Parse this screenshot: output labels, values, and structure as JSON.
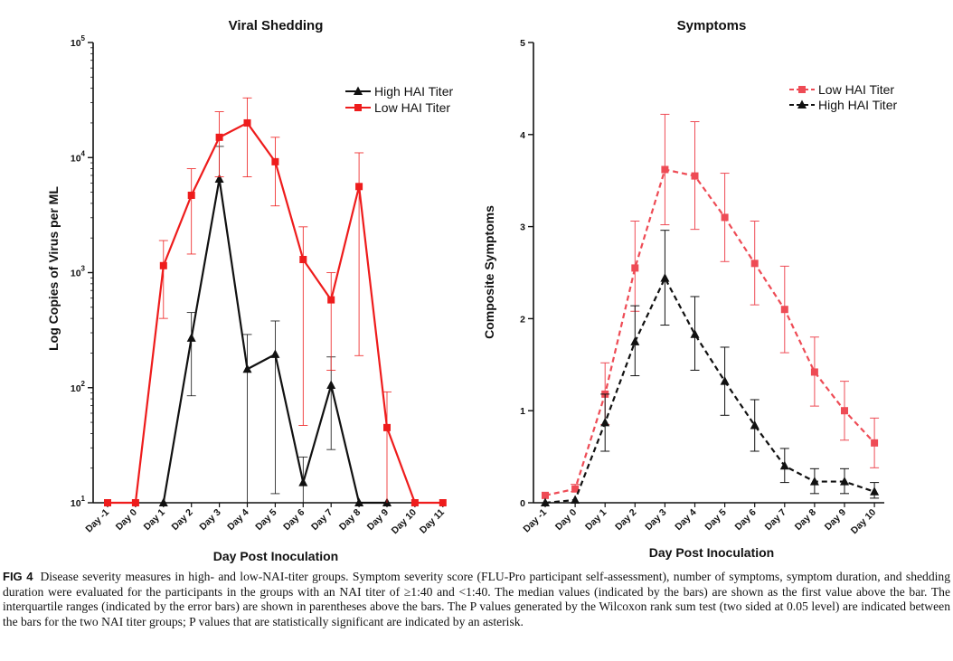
{
  "caption": {
    "label": "FIG 4",
    "text": "Disease severity measures in high- and low-NAI-titer groups. Symptom severity score (FLU-Pro participant self-assessment), number of symptoms, symptom duration, and shedding duration were evaluated for the participants in the groups with an NAI titer of ≥1:40 and <1:40. The median values (indicated by the bars) are shown as the first value above the bar. The interquartile ranges (indicated by the error bars) are shown in parentheses above the bars. The P values generated by the Wilcoxon rank sum test (two sided at 0.05 level) are indicated between the bars for the two NAI titer groups; P values that are statistically significant are indicated by an asterisk."
  },
  "chart_data": [
    {
      "type": "line",
      "title": "Viral Shedding",
      "xlabel": "Day Post Inoculation",
      "ylabel": "Log Copies of Virus per ML",
      "yscale": "log",
      "ylim": [
        10,
        100000
      ],
      "yticks": [
        {
          "value": 10,
          "base": "10",
          "exp": "1"
        },
        {
          "value": 100,
          "base": "10",
          "exp": "2"
        },
        {
          "value": 1000,
          "base": "10",
          "exp": "3"
        },
        {
          "value": 10000,
          "base": "10",
          "exp": "4"
        },
        {
          "value": 100000,
          "base": "10",
          "exp": "5"
        }
      ],
      "categories": [
        "Day -1",
        "Day 0",
        "Day 1",
        "Day 2",
        "Day 3",
        "Day 4",
        "Day 5",
        "Day 6",
        "Day 7",
        "Day 8",
        "Day 9",
        "Day 10",
        "Day 11"
      ],
      "legend_position": "top-right",
      "series": [
        {
          "name": "High HAI Titer",
          "color": "#111111",
          "marker": "triangle",
          "dash": false,
          "values": [
            null,
            null,
            10,
            270,
            6500,
            145,
            195,
            15,
            105,
            10,
            10,
            null,
            null
          ],
          "err_low": [
            null,
            null,
            null,
            85,
            null,
            10,
            12,
            10,
            29,
            null,
            null,
            null,
            null
          ],
          "err_high": [
            null,
            null,
            null,
            450,
            12500,
            290,
            380,
            25,
            185,
            null,
            null,
            null,
            null
          ]
        },
        {
          "name": "Low HAI Titer",
          "color": "#ee1c1c",
          "marker": "square",
          "dash": false,
          "values": [
            10,
            10,
            1150,
            4700,
            15000,
            20000,
            9200,
            1300,
            580,
            5600,
            45,
            10,
            10
          ],
          "err_low": [
            null,
            null,
            400,
            1450,
            6800,
            6800,
            3800,
            47,
            142,
            190,
            10,
            null,
            null
          ],
          "err_high": [
            null,
            null,
            1900,
            8000,
            25000,
            33000,
            15000,
            2500,
            1000,
            11000,
            92,
            null,
            null
          ]
        }
      ]
    },
    {
      "type": "line",
      "title": "Symptoms",
      "xlabel": "Day Post Inoculation",
      "ylabel": "Composite Symptoms",
      "ylim": [
        0,
        5
      ],
      "yticks": [
        0,
        1,
        2,
        3,
        4,
        5
      ],
      "categories": [
        "Day -1",
        "Day 0",
        "Day 1",
        "Day 2",
        "Day 3",
        "Day 4",
        "Day 5",
        "Day 6",
        "Day 7",
        "Day 8",
        "Day 9",
        "Day 10"
      ],
      "legend_position": "top-right",
      "series": [
        {
          "name": "Low HAI Titer",
          "color": "#ee4b55",
          "marker": "square",
          "dash": true,
          "values": [
            0.08,
            0.15,
            1.18,
            2.55,
            3.62,
            3.55,
            3.1,
            2.6,
            2.1,
            1.42,
            1.0,
            0.65
          ],
          "err_low": [
            null,
            0.12,
            0.85,
            2.08,
            3.02,
            2.97,
            2.62,
            2.15,
            1.63,
            1.05,
            0.68,
            0.38
          ],
          "err_high": [
            null,
            0.2,
            1.52,
            3.06,
            4.22,
            4.14,
            3.58,
            3.06,
            2.57,
            1.8,
            1.32,
            0.92
          ]
        },
        {
          "name": "High HAI Titer",
          "color": "#111111",
          "marker": "triangle",
          "dash": true,
          "values": [
            0.0,
            0.03,
            0.87,
            1.75,
            2.44,
            1.83,
            1.32,
            0.84,
            0.4,
            0.23,
            0.23,
            0.12
          ],
          "err_low": [
            null,
            null,
            0.56,
            1.38,
            1.93,
            1.44,
            0.95,
            0.56,
            0.22,
            0.1,
            0.1,
            0.05
          ],
          "err_high": [
            null,
            null,
            1.18,
            2.14,
            2.96,
            2.24,
            1.69,
            1.12,
            0.59,
            0.37,
            0.37,
            0.22
          ]
        }
      ]
    }
  ]
}
